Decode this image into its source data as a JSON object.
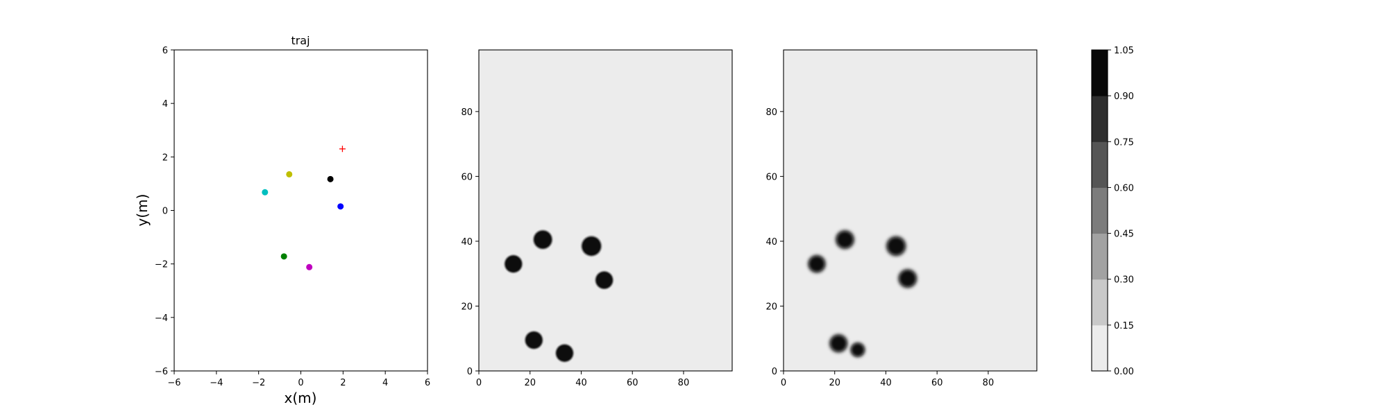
{
  "chart_data": [
    {
      "type": "scatter",
      "title": "traj",
      "xlabel": "x(m)",
      "ylabel": "y(m)",
      "xlim": [
        -6,
        6
      ],
      "ylim": [
        -6,
        6
      ],
      "xticks": [
        "−6",
        "−4",
        "−2",
        "0",
        "2",
        "4",
        "6"
      ],
      "yticks": [
        "−6",
        "−4",
        "−2",
        "0",
        "2",
        "4",
        "6"
      ],
      "grid": false,
      "points": [
        {
          "x": -1.7,
          "y": 0.68,
          "color": "#00bfbf",
          "marker": "circle"
        },
        {
          "x": -0.55,
          "y": 1.35,
          "color": "#bfbf00",
          "marker": "circle"
        },
        {
          "x": 1.4,
          "y": 1.17,
          "color": "#000000",
          "marker": "circle"
        },
        {
          "x": 1.88,
          "y": 0.15,
          "color": "#0000ff",
          "marker": "circle"
        },
        {
          "x": -0.8,
          "y": -1.72,
          "color": "#008000",
          "marker": "circle"
        },
        {
          "x": 0.4,
          "y": -2.12,
          "color": "#bf00bf",
          "marker": "circle"
        },
        {
          "x": 1.97,
          "y": 2.3,
          "color": "#ff0000",
          "marker": "plus"
        }
      ]
    },
    {
      "type": "heatmap",
      "xlim": [
        0,
        99
      ],
      "ylim": [
        0,
        99
      ],
      "xticks": [
        "0",
        "20",
        "40",
        "60",
        "80"
      ],
      "yticks": [
        "0",
        "20",
        "40",
        "60",
        "80"
      ],
      "background_value": 0.0,
      "blobs": [
        {
          "x": 13.5,
          "y": 33,
          "radius": 3.3
        },
        {
          "x": 25,
          "y": 40.5,
          "radius": 3.5
        },
        {
          "x": 44,
          "y": 38.5,
          "radius": 3.7
        },
        {
          "x": 49,
          "y": 28,
          "radius": 3.3
        },
        {
          "x": 21.5,
          "y": 9.5,
          "radius": 3.3
        },
        {
          "x": 33.5,
          "y": 5.5,
          "radius": 3.3
        }
      ]
    },
    {
      "type": "heatmap",
      "xlim": [
        0,
        99
      ],
      "ylim": [
        0,
        99
      ],
      "xticks": [
        "0",
        "20",
        "40",
        "60",
        "80"
      ],
      "yticks": [
        "0",
        "20",
        "40",
        "60",
        "80"
      ],
      "background_value": 0.0,
      "blobs": [
        {
          "x": 13,
          "y": 33,
          "radius": 3.4
        },
        {
          "x": 24,
          "y": 40.5,
          "radius": 3.6
        },
        {
          "x": 44,
          "y": 38.5,
          "radius": 3.8
        },
        {
          "x": 48.5,
          "y": 28.5,
          "radius": 3.6
        },
        {
          "x": 21.5,
          "y": 8.5,
          "radius": 3.5
        },
        {
          "x": 29,
          "y": 6.5,
          "radius": 2.8
        }
      ]
    }
  ],
  "colorbar": {
    "levels": [
      {
        "label": "0.00",
        "color": "#ececec"
      },
      {
        "label": "0.15",
        "color": "#c9c9c9"
      },
      {
        "label": "0.30",
        "color": "#a2a2a2"
      },
      {
        "label": "0.45",
        "color": "#7c7c7c"
      },
      {
        "label": "0.60",
        "color": "#555555"
      },
      {
        "label": "0.75",
        "color": "#2e2e2e"
      },
      {
        "label": "0.90",
        "color": "#080808"
      },
      {
        "label": "1.05",
        "color": ""
      }
    ]
  }
}
